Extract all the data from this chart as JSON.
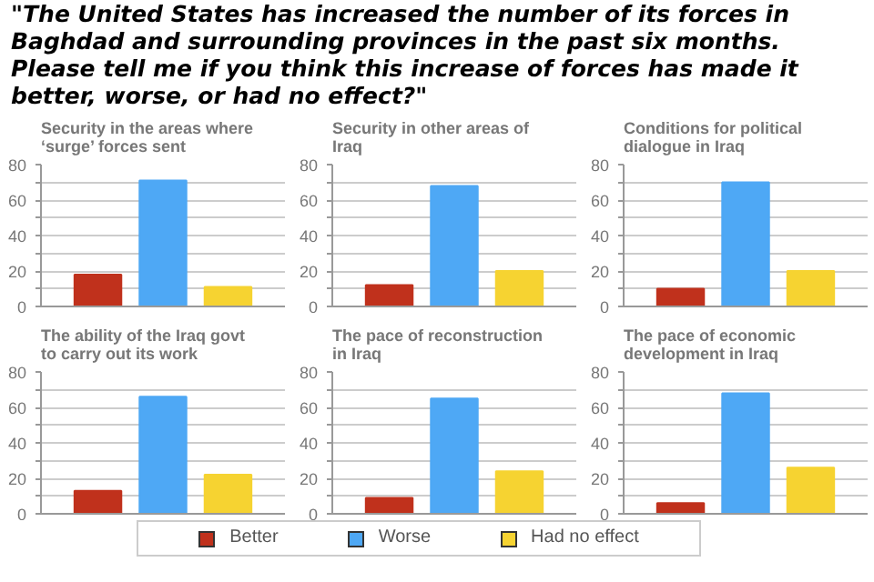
{
  "chart_data": [
    {
      "type": "bar",
      "title": "\"The United States has increased the number of its forces in Baghdad and surrounding provinces in the past six months. Please tell me if you think this increase of forces has made it better, worse, or had no effect?\"",
      "subtitle": "Security in the areas where ‘surge’ forces sent",
      "categories": [
        null
      ],
      "ylim": [
        0,
        80
      ],
      "yticks": [
        0,
        {
          "value": 10,
          "label": null
        },
        20,
        {
          "value": 30,
          "label": null
        },
        40,
        {
          "value": 50,
          "label": null
        },
        60,
        {
          "value": 70,
          "label": null
        },
        80
      ],
      "grid": "y",
      "legend": "bottom",
      "series": [
        {
          "name": "Better",
          "color": "#c0311c",
          "values": [
            18
          ]
        },
        {
          "name": "Worse",
          "color": "#4ea8f5",
          "values": [
            71
          ]
        },
        {
          "name": "Had no effect",
          "color": "#f6d331",
          "values": [
            11
          ]
        }
      ]
    },
    {
      "type": "bar",
      "subtitle": "Security in other areas of Iraq",
      "categories": [
        null
      ],
      "ylim": [
        0,
        80
      ],
      "yticks": [
        0,
        {
          "value": 10,
          "label": null
        },
        20,
        {
          "value": 30,
          "label": null
        },
        40,
        {
          "value": 50,
          "label": null
        },
        60,
        {
          "value": 70,
          "label": null
        },
        80
      ],
      "grid": "y",
      "series": [
        {
          "name": "Better",
          "color": "#c0311c",
          "values": [
            12
          ]
        },
        {
          "name": "Worse",
          "color": "#4ea8f5",
          "values": [
            68
          ]
        },
        {
          "name": "Had no effect",
          "color": "#f6d331",
          "values": [
            20
          ]
        }
      ]
    },
    {
      "type": "bar",
      "subtitle": "Conditions for political dialogue in Iraq",
      "categories": [
        null
      ],
      "ylim": [
        0,
        80
      ],
      "yticks": [
        0,
        {
          "value": 10,
          "label": null
        },
        20,
        {
          "value": 30,
          "label": null
        },
        40,
        {
          "value": 50,
          "label": null
        },
        60,
        {
          "value": 70,
          "label": null
        },
        80
      ],
      "grid": "y",
      "series": [
        {
          "name": "Better",
          "color": "#c0311c",
          "values": [
            10
          ]
        },
        {
          "name": "Worse",
          "color": "#4ea8f5",
          "values": [
            70
          ]
        },
        {
          "name": "Had no effect",
          "color": "#f6d331",
          "values": [
            20
          ]
        }
      ]
    },
    {
      "type": "bar",
      "subtitle": "The ability of the Iraq govt to carry out its work",
      "categories": [
        null
      ],
      "ylim": [
        0,
        80
      ],
      "yticks": [
        0,
        {
          "value": 10,
          "label": null
        },
        20,
        {
          "value": 30,
          "label": null
        },
        40,
        {
          "value": 50,
          "label": null
        },
        60,
        {
          "value": 70,
          "label": null
        },
        80
      ],
      "grid": "y",
      "series": [
        {
          "name": "Better",
          "color": "#c0311c",
          "values": [
            13
          ]
        },
        {
          "name": "Worse",
          "color": "#4ea8f5",
          "values": [
            66
          ]
        },
        {
          "name": "Had no effect",
          "color": "#f6d331",
          "values": [
            22
          ]
        }
      ]
    },
    {
      "type": "bar",
      "subtitle": "The pace of reconstruction in Iraq",
      "categories": [
        null
      ],
      "ylim": [
        0,
        80
      ],
      "yticks": [
        0,
        {
          "value": 10,
          "label": null
        },
        20,
        {
          "value": 30,
          "label": null
        },
        40,
        {
          "value": 50,
          "label": null
        },
        60,
        {
          "value": 70,
          "label": null
        },
        80
      ],
      "grid": "y",
      "series": [
        {
          "name": "Better",
          "color": "#c0311c",
          "values": [
            9
          ]
        },
        {
          "name": "Worse",
          "color": "#4ea8f5",
          "values": [
            65
          ]
        },
        {
          "name": "Had no effect",
          "color": "#f6d331",
          "values": [
            24
          ]
        }
      ]
    },
    {
      "type": "bar",
      "subtitle": "The pace of economic development in Iraq",
      "categories": [
        null
      ],
      "ylim": [
        0,
        80
      ],
      "yticks": [
        0,
        {
          "value": 10,
          "label": null
        },
        20,
        {
          "value": 30,
          "label": null
        },
        40,
        {
          "value": 50,
          "label": null
        },
        60,
        {
          "value": 70,
          "label": null
        },
        80
      ],
      "grid": "y",
      "series": [
        {
          "name": "Better",
          "color": "#c0311c",
          "values": [
            6
          ]
        },
        {
          "name": "Worse",
          "color": "#4ea8f5",
          "values": [
            68
          ]
        },
        {
          "name": "Had no effect",
          "color": "#f6d331",
          "values": [
            26
          ]
        }
      ]
    }
  ]
}
